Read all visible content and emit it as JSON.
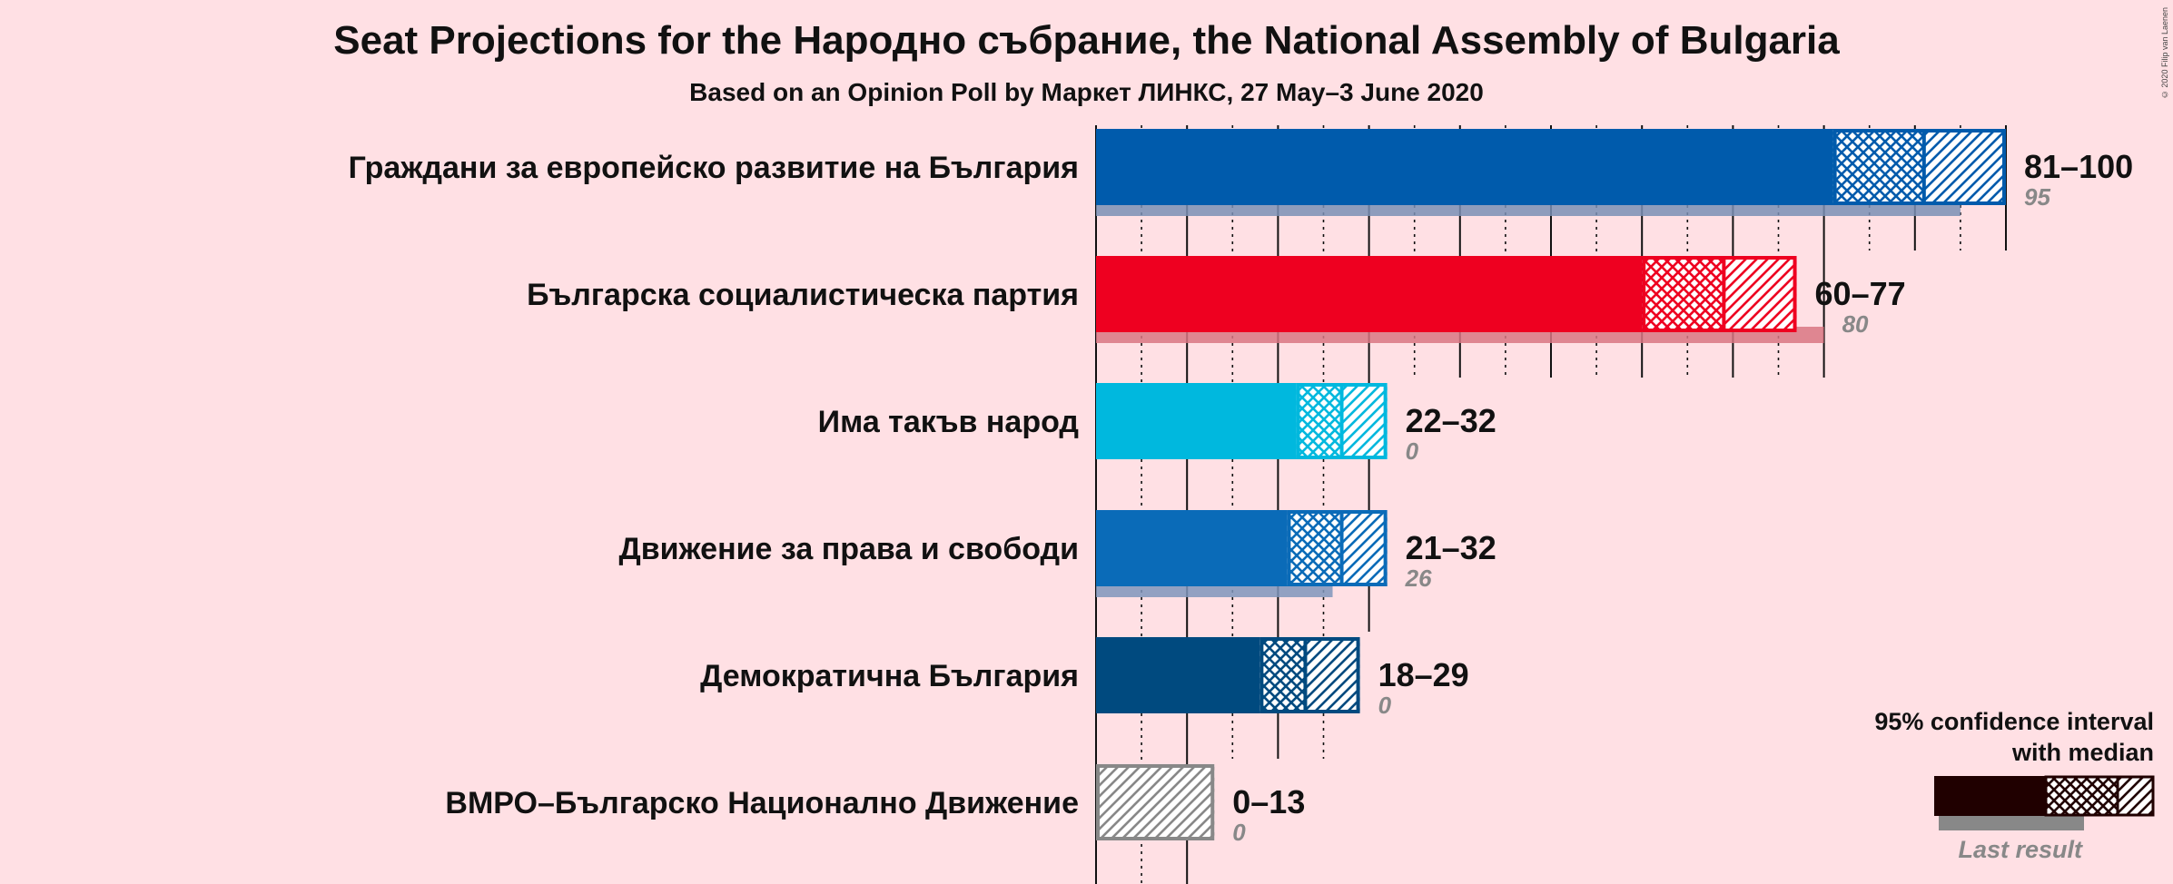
{
  "chart_data": {
    "type": "bar",
    "title": "Seat Projections for the Народно събрание, the National Assembly of Bulgaria",
    "subtitle": "Based on an Opinion Poll by Маркет ЛИНКС, 27 May–3 June 2020",
    "credit": "© 2020 Filip van Laenen",
    "xlim": [
      0,
      100
    ],
    "grid_major_every": 10,
    "grid_minor_every": 5,
    "series": [
      {
        "name": "Граждани за европейско развитие на България",
        "low": 81,
        "median": 91,
        "high": 100,
        "last": 95,
        "range_label": "81–100",
        "last_label": "95",
        "color": "#005BAC",
        "last_color": "#7A8FB5"
      },
      {
        "name": "Българска социалистическа партия",
        "low": 60,
        "median": 69,
        "high": 77,
        "last": 80,
        "range_label": "60–77",
        "last_label": "80",
        "color": "#EE0020",
        "last_color": "#D97683"
      },
      {
        "name": "Има такъв народ",
        "low": 22,
        "median": 27,
        "high": 32,
        "last": 0,
        "range_label": "22–32",
        "last_label": "0",
        "color": "#00B8DE",
        "last_color": "#7ACBDD"
      },
      {
        "name": "Движение за права и свободи",
        "low": 21,
        "median": 27,
        "high": 32,
        "last": 26,
        "range_label": "21–32",
        "last_label": "26",
        "color": "#0A6BB8",
        "last_color": "#7F95BC"
      },
      {
        "name": "Демократична България",
        "low": 18,
        "median": 23,
        "high": 29,
        "last": 0,
        "range_label": "18–29",
        "last_label": "0",
        "color": "#004A7F",
        "last_color": "#7A93AE"
      },
      {
        "name": "ВМРО–Българско Национално Движение",
        "low": 0,
        "median": 0,
        "high": 13,
        "last": 0,
        "range_label": "0–13",
        "last_label": "0",
        "color": "#888888",
        "last_color": "#AAAAAA"
      }
    ]
  },
  "legend": {
    "title_line1": "95% confidence interval",
    "title_line2": "with median",
    "last_result": "Last result",
    "color": "#200000"
  }
}
